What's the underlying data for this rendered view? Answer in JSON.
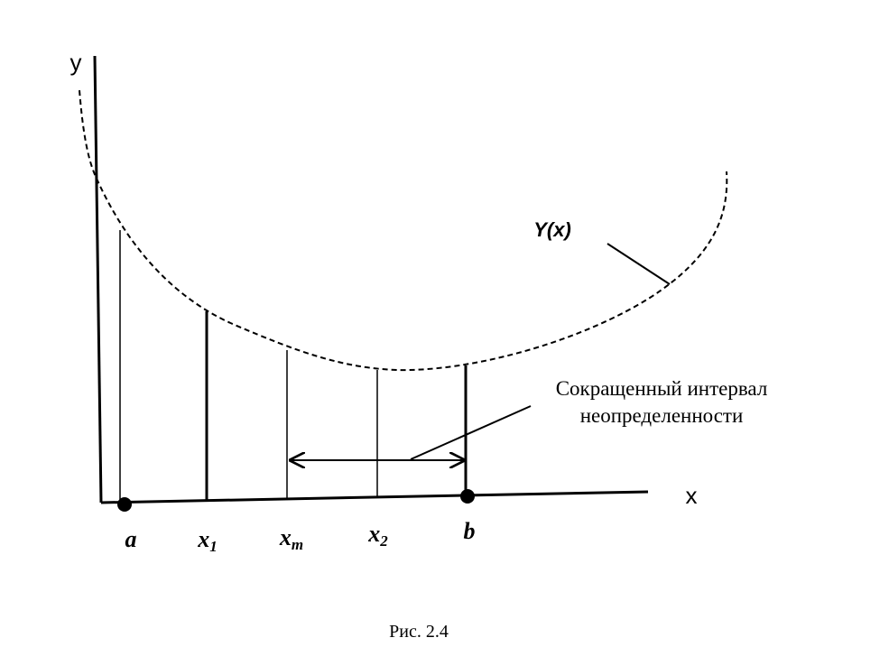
{
  "axes": {
    "y_label": "y",
    "x_label": "x"
  },
  "curve_label": "Y(x)",
  "points": [
    {
      "base": "a",
      "sub": ""
    },
    {
      "base": "x",
      "sub": "1"
    },
    {
      "base": "x",
      "sub": "m"
    },
    {
      "base": "x",
      "sub": "2"
    },
    {
      "base": "b",
      "sub": ""
    }
  ],
  "annotation": {
    "line1": "Сокращенный интервал",
    "line2": "неопределенности"
  },
  "caption": "Рис. 2.4"
}
